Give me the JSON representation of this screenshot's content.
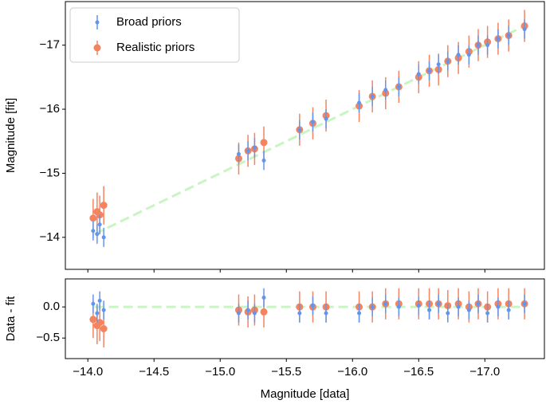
{
  "chart_data": [
    {
      "type": "errorbar",
      "ylabel": "Magnitude [fit]",
      "legend": "upper left",
      "xlim": [
        -13.83,
        -17.45
      ],
      "ylim": [
        -13.5,
        -17.68
      ],
      "yticks": [
        {
          "value": -14,
          "label": "−14"
        },
        {
          "value": -15,
          "label": "−15"
        },
        {
          "value": -16,
          "label": "−16"
        },
        {
          "value": -17,
          "label": "−17"
        }
      ],
      "x": [
        -14.04,
        -14.07,
        -14.09,
        -14.12,
        -15.14,
        -15.21,
        -15.26,
        -15.33,
        -15.6,
        -15.7,
        -15.8,
        -16.05,
        -16.15,
        -16.25,
        -16.35,
        -16.5,
        -16.58,
        -16.65,
        -16.72,
        -16.8,
        -16.88,
        -16.95,
        -17.02,
        -17.1,
        -17.18,
        -17.3
      ],
      "fit_line": {
        "color": "#c9f5c2",
        "x": [
          -14.05,
          -17.3
        ],
        "y": [
          -14.05,
          -17.3
        ]
      },
      "series": [
        {
          "name": "Realistic priors",
          "color": "#f4845f",
          "values": [
            -14.3,
            -14.4,
            -14.35,
            -14.5,
            -15.23,
            -15.35,
            -15.38,
            -15.48,
            -15.68,
            -15.78,
            -15.9,
            -16.05,
            -16.2,
            -16.25,
            -16.35,
            -16.5,
            -16.6,
            -16.62,
            -16.75,
            -16.8,
            -16.9,
            -17.0,
            -17.05,
            -17.1,
            -17.15,
            -17.3
          ],
          "errors": [
            0.3,
            0.3,
            0.3,
            0.3,
            0.25,
            0.25,
            0.25,
            0.25,
            0.25,
            0.25,
            0.25,
            0.25,
            0.25,
            0.25,
            0.25,
            0.25,
            0.25,
            0.25,
            0.25,
            0.25,
            0.25,
            0.25,
            0.25,
            0.25,
            0.25,
            0.25
          ]
        },
        {
          "name": "Broad priors",
          "color": "#6495ed",
          "values": [
            -14.1,
            -14.05,
            -14.2,
            -14.0,
            -15.3,
            -15.35,
            -15.4,
            -15.2,
            -15.68,
            -15.8,
            -15.85,
            -16.1,
            -16.2,
            -16.3,
            -16.35,
            -16.55,
            -16.6,
            -16.7,
            -16.75,
            -16.85,
            -16.85,
            -17.0,
            -17.0,
            -17.1,
            -17.15,
            -17.25
          ],
          "errors": [
            0.15,
            0.15,
            0.15,
            0.15,
            0.15,
            0.15,
            0.15,
            0.15,
            0.15,
            0.15,
            0.15,
            0.15,
            0.15,
            0.15,
            0.15,
            0.15,
            0.15,
            0.15,
            0.15,
            0.15,
            0.15,
            0.15,
            0.15,
            0.15,
            0.15,
            0.15
          ]
        }
      ]
    },
    {
      "type": "errorbar",
      "ylabel": "Data - fit",
      "xlabel": "Magnitude [data]",
      "xlim": [
        -13.83,
        -17.45
      ],
      "ylim": [
        -0.83,
        0.45
      ],
      "xticks": [
        {
          "value": -14.0,
          "label": "−14.0"
        },
        {
          "value": -14.5,
          "label": "−14.5"
        },
        {
          "value": -15.0,
          "label": "−15.0"
        },
        {
          "value": -15.5,
          "label": "−15.5"
        },
        {
          "value": -16.0,
          "label": "−16.0"
        },
        {
          "value": -16.5,
          "label": "−16.5"
        },
        {
          "value": -17.0,
          "label": "−17.0"
        }
      ],
      "yticks": [
        {
          "value": 0,
          "label": "0.0"
        },
        {
          "value": -0.5,
          "label": "−0.5"
        }
      ],
      "x": [
        -14.04,
        -14.07,
        -14.09,
        -14.12,
        -15.14,
        -15.21,
        -15.26,
        -15.33,
        -15.6,
        -15.7,
        -15.8,
        -16.05,
        -16.15,
        -16.25,
        -16.35,
        -16.5,
        -16.58,
        -16.65,
        -16.72,
        -16.8,
        -16.88,
        -16.95,
        -17.02,
        -17.1,
        -17.18,
        -17.3
      ],
      "fit_line": {
        "color": "#c9f5c2",
        "x": [
          -14.05,
          -17.3
        ],
        "y": [
          0,
          0
        ]
      },
      "series": [
        {
          "name": "Realistic priors",
          "color": "#f4845f",
          "values": [
            -0.2,
            -0.3,
            -0.25,
            -0.35,
            -0.05,
            -0.08,
            -0.05,
            -0.08,
            0,
            0,
            0,
            0,
            0,
            0.05,
            0.05,
            0.05,
            0.05,
            0.05,
            0.02,
            0.05,
            0,
            0.05,
            0,
            0.05,
            0.05,
            0.05
          ],
          "errors": [
            0.3,
            0.3,
            0.3,
            0.3,
            0.25,
            0.25,
            0.25,
            0.25,
            0.25,
            0.25,
            0.25,
            0.25,
            0.25,
            0.25,
            0.25,
            0.25,
            0.25,
            0.25,
            0.25,
            0.25,
            0.25,
            0.25,
            0.25,
            0.25,
            0.25,
            0.25
          ]
        },
        {
          "name": "Broad priors",
          "color": "#6495ed",
          "values": [
            0.05,
            -0.1,
            0.1,
            -0.05,
            -0.1,
            -0.05,
            -0.1,
            0.15,
            -0.1,
            0.02,
            -0.1,
            -0.1,
            0,
            0.05,
            0,
            0.02,
            -0.05,
            0.05,
            -0.1,
            0,
            -0.05,
            0.05,
            -0.1,
            0,
            -0.05,
            0.05
          ],
          "errors": [
            0.15,
            0.15,
            0.15,
            0.15,
            0.15,
            0.15,
            0.15,
            0.15,
            0.15,
            0.15,
            0.15,
            0.15,
            0.15,
            0.15,
            0.15,
            0.15,
            0.15,
            0.15,
            0.15,
            0.15,
            0.15,
            0.15,
            0.15,
            0.15,
            0.15,
            0.15
          ]
        }
      ]
    }
  ]
}
